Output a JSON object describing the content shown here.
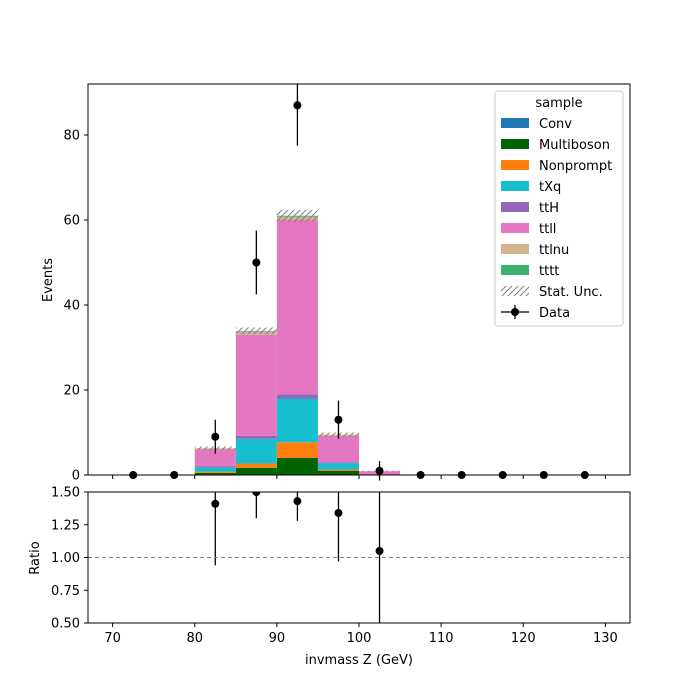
{
  "chart_data": {
    "type": "bar",
    "xlabel": "invmass Z (GeV)",
    "ylabel": "Events",
    "ratio_ylabel": "Ratio",
    "xlim": [
      67,
      133
    ],
    "ylim": [
      0,
      92
    ],
    "ratio_ylim": [
      0.5,
      1.5
    ],
    "x_ticks": [
      "70",
      "80",
      "90",
      "100",
      "110",
      "120",
      "130"
    ],
    "y_ticks": [
      "0",
      "20",
      "40",
      "60",
      "80"
    ],
    "ratio_ticks": [
      "0.50",
      "0.75",
      "1.00",
      "1.25",
      "1.50"
    ],
    "bin_edges": [
      70,
      75,
      80,
      85,
      90,
      95,
      100,
      105,
      110,
      115,
      120,
      125,
      130
    ],
    "legend_title": "sample",
    "legend_position": "top-right",
    "series": [
      {
        "name": "Conv",
        "color": "#1f77b4",
        "values": [
          0,
          0,
          0,
          0,
          0,
          0,
          0,
          0,
          0,
          0,
          0,
          0
        ]
      },
      {
        "name": "Multiboson",
        "color": "#006400",
        "values": [
          0,
          0,
          0.5,
          1.7,
          4.0,
          1.0,
          0,
          0,
          0,
          0,
          0,
          0
        ]
      },
      {
        "name": "Nonprompt",
        "color": "#ff7f0e",
        "values": [
          0,
          0,
          0.3,
          1.0,
          3.7,
          0.3,
          0,
          0,
          0,
          0,
          0,
          0
        ]
      },
      {
        "name": "tXq",
        "color": "#17becf",
        "values": [
          0,
          0,
          1.0,
          5.8,
          10.3,
          1.5,
          0.1,
          0,
          0,
          0,
          0,
          0
        ]
      },
      {
        "name": "ttH",
        "color": "#9467bd",
        "values": [
          0,
          0,
          0.2,
          0.7,
          1.0,
          0.2,
          0,
          0,
          0,
          0,
          0,
          0
        ]
      },
      {
        "name": "ttll",
        "color": "#e377c2",
        "values": [
          0,
          0,
          4.0,
          23.8,
          41.0,
          6.2,
          0.8,
          0,
          0,
          0,
          0,
          0
        ]
      },
      {
        "name": "ttlnu",
        "color": "#d2b48c",
        "values": [
          0,
          0,
          0.3,
          0.8,
          0.8,
          0.3,
          0,
          0,
          0,
          0,
          0,
          0
        ]
      },
      {
        "name": "tttt",
        "color": "#3cb371",
        "values": [
          0,
          0,
          0,
          0.1,
          0.2,
          0,
          0,
          0,
          0,
          0,
          0,
          0
        ]
      }
    ],
    "stat_unc_label": "Stat. Unc.",
    "stat_unc": [
      0,
      0,
      0.4,
      0.8,
      1.4,
      0.5,
      0.1,
      0,
      0,
      0,
      0,
      0
    ],
    "data": {
      "name": "Data",
      "x": [
        72.5,
        77.5,
        82.5,
        87.5,
        92.5,
        97.5,
        102.5,
        107.5,
        112.5,
        117.5,
        122.5,
        127.5
      ],
      "y": [
        0,
        0,
        9,
        50,
        87,
        13,
        1,
        0,
        0,
        0,
        0,
        0
      ],
      "yerr": [
        0,
        0,
        4,
        7.5,
        9.5,
        4.5,
        2.3,
        0,
        0,
        0,
        0,
        0
      ]
    },
    "ratio": {
      "x": [
        82.5,
        87.5,
        92.5,
        97.5,
        102.5
      ],
      "y": [
        1.41,
        1.5,
        1.43,
        1.34,
        1.05
      ],
      "yerr": [
        0.47,
        0.2,
        0.15,
        0.37,
        1.0
      ]
    },
    "ratio_reference": 1.0
  }
}
